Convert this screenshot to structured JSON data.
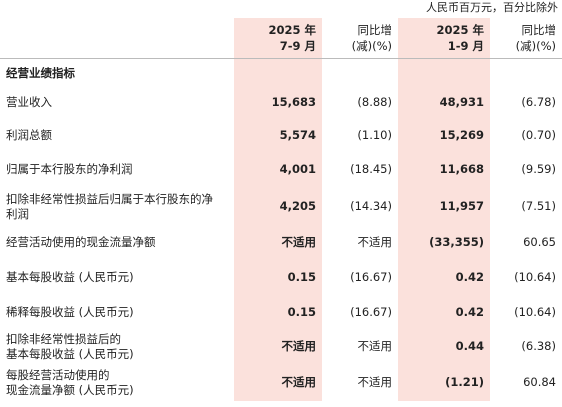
{
  "unit_note": "人民币百万元，百分比除外",
  "table": {
    "header": [
      "",
      "2025 年\n7-9 月",
      "同比增\n(减)(%)",
      "2025 年\n1-9 月",
      "同比增\n(减)(%)"
    ],
    "section": "经营业绩指标",
    "rows": [
      [
        "营业收入",
        "15,683",
        "(8.88)",
        "48,931",
        "(6.78)"
      ],
      [
        "利润总额",
        "5,574",
        "(1.10)",
        "15,269",
        "(0.70)"
      ],
      [
        "归属于本行股东的净利润",
        "4,001",
        "(18.45)",
        "11,668",
        "(9.59)"
      ],
      [
        "扣除非经常性损益后归属于本行股东的净\n利润",
        "4,205",
        "(14.34)",
        "11,957",
        "(7.51)"
      ],
      [
        "经营活动使用的现金流量净额",
        "不适用",
        "不适用",
        "(33,355)",
        "60.65"
      ],
      [
        "基本每股收益 (人民币元)",
        "0.15",
        "(16.67)",
        "0.42",
        "(10.64)"
      ],
      [
        "稀释每股收益 (人民币元)",
        "0.15",
        "(16.67)",
        "0.42",
        "(10.64)"
      ],
      [
        "扣除非经常性损益后的\n基本每股收益 (人民币元)",
        "不适用",
        "不适用",
        "0.44",
        "(6.38)"
      ],
      [
        "每股经营活动使用的\n现金流量净额 (人民币元)",
        "不适用",
        "不适用",
        "(1.21)",
        "60.84"
      ]
    ]
  }
}
